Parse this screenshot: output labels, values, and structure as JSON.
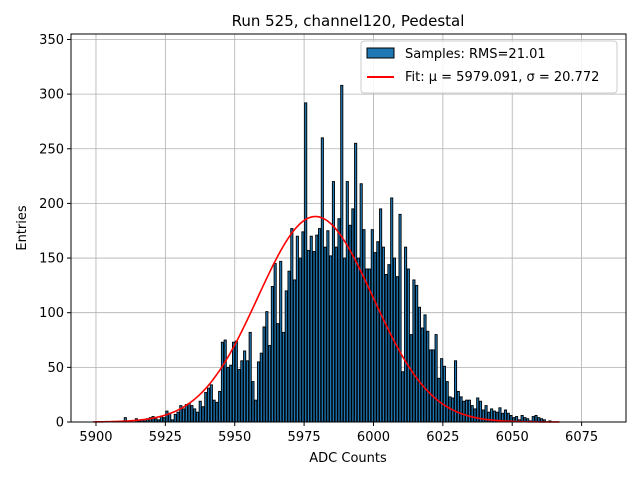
{
  "chart_data": {
    "type": "bar",
    "title": "Run 525, channel120, Pedestal",
    "xlabel": "ADC Counts",
    "ylabel": "Entries",
    "xlim": [
      5891,
      5091
    ],
    "ylim": [
      0,
      355
    ],
    "grid": true,
    "legend_position": "top-right",
    "x_ticks": [
      5900,
      5925,
      5950,
      5975,
      6000,
      6025,
      6050,
      6075
    ],
    "y_ticks": [
      0,
      50,
      100,
      150,
      200,
      250,
      300,
      350
    ],
    "histogram": {
      "name": "Samples: RMS=21.01",
      "color": "#1f77b4",
      "edge_color": "#000000",
      "bin_start": 5910,
      "bin_width": 1,
      "values": [
        4,
        1,
        0,
        0,
        3,
        1,
        2,
        1,
        3,
        4,
        5,
        3,
        2,
        5,
        4,
        10,
        8,
        2,
        7,
        9,
        15,
        12,
        16,
        17,
        15,
        12,
        9,
        19,
        14,
        27,
        31,
        34,
        20,
        18,
        28,
        73,
        75,
        50,
        52,
        73,
        74,
        48,
        56,
        65,
        56,
        82,
        37,
        20,
        55,
        63,
        87,
        101,
        70,
        124,
        145,
        90,
        147,
        82,
        120,
        138,
        177,
        130,
        170,
        150,
        174,
        292,
        157,
        170,
        156,
        171,
        177,
        260,
        160,
        175,
        152,
        220,
        160,
        186,
        308,
        150,
        220,
        180,
        195,
        255,
        150,
        218,
        176,
        140,
        140,
        176,
        155,
        165,
        195,
        160,
        135,
        144,
        205,
        150,
        133,
        190,
        46,
        160,
        140,
        80,
        130,
        125,
        105,
        86,
        98,
        83,
        66,
        66,
        80,
        40,
        58,
        51,
        37,
        23,
        22,
        56,
        28,
        23,
        19,
        20,
        20,
        15,
        12,
        22,
        19,
        11,
        15,
        9,
        12,
        10,
        9,
        13,
        8,
        11,
        8,
        6,
        4,
        5,
        2,
        6,
        4,
        3,
        1,
        5,
        6,
        4,
        3,
        2,
        0,
        1
      ]
    },
    "fit": {
      "name": "Fit: μ = 5979.091, σ = 20.772",
      "color": "#ff0000",
      "mu": 5979.091,
      "sigma": 20.772,
      "amplitude": 188,
      "x_range": [
        5899,
        6067
      ]
    }
  }
}
